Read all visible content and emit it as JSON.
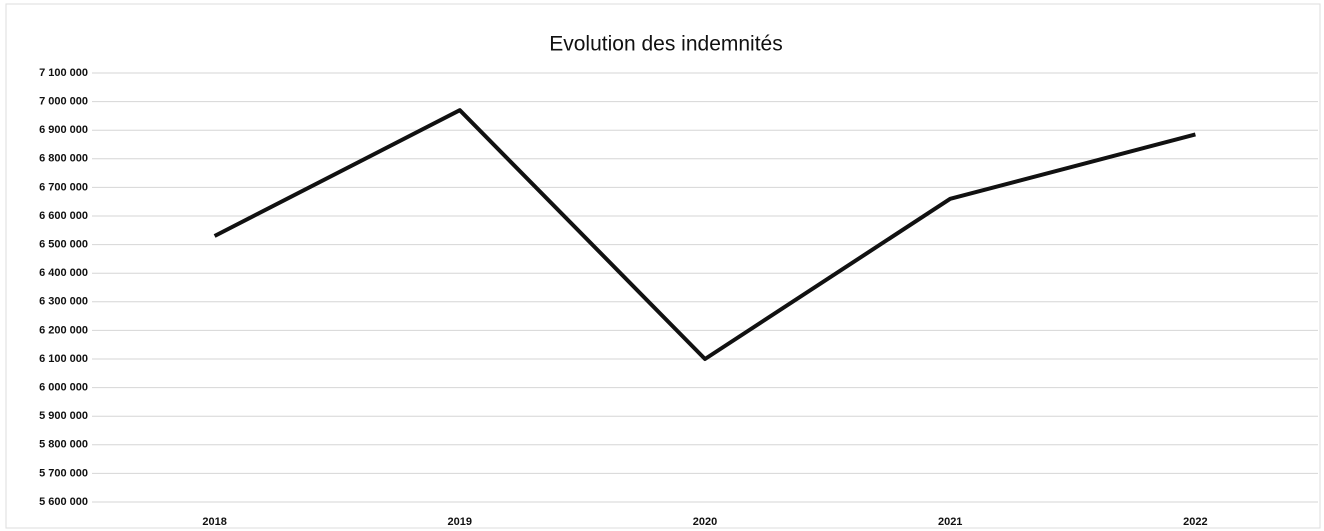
{
  "chart_data": {
    "type": "line",
    "title": "Evolution des indemnités",
    "categories": [
      "2018",
      "2019",
      "2020",
      "2021",
      "2022"
    ],
    "values": [
      6530000,
      6970000,
      6100000,
      6660000,
      6885000
    ],
    "color": "#111111",
    "ylim": [
      5600000,
      7100000
    ],
    "yticks": [
      {
        "value": 5600000,
        "label": "5 600 000"
      },
      {
        "value": 5700000,
        "label": "5 700 000"
      },
      {
        "value": 5800000,
        "label": "5 800 000"
      },
      {
        "value": 5900000,
        "label": "5 900 000"
      },
      {
        "value": 6000000,
        "label": "6 000 000"
      },
      {
        "value": 6100000,
        "label": "6 100 000"
      },
      {
        "value": 6200000,
        "label": "6 200 000"
      },
      {
        "value": 6300000,
        "label": "6 300 000"
      },
      {
        "value": 6400000,
        "label": "6 400 000"
      },
      {
        "value": 6500000,
        "label": "6 500 000"
      },
      {
        "value": 6600000,
        "label": "6 600 000"
      },
      {
        "value": 6700000,
        "label": "6 700 000"
      },
      {
        "value": 6800000,
        "label": "6 800 000"
      },
      {
        "value": 6900000,
        "label": "6 900 000"
      },
      {
        "value": 7000000,
        "label": "7 000 000"
      },
      {
        "value": 7100000,
        "label": "7 100 000"
      }
    ],
    "grid": true
  }
}
